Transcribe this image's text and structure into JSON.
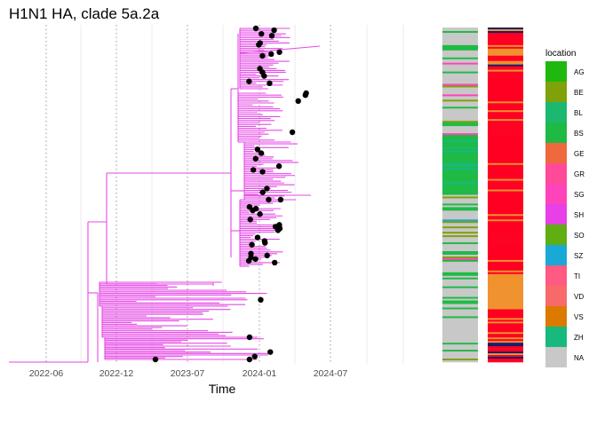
{
  "title": "H1N1 HA, clade 5a.2a",
  "chart_data": {
    "type": "phylogenetic-tree",
    "title": "H1N1 HA, clade 5a.2a",
    "xlabel": "Time",
    "x_ticks": [
      "2022-06",
      "2022-12",
      "2023-07",
      "2024-01",
      "2024-07"
    ],
    "branch_color": "#e64ae6",
    "tip_marker_color": "#000000",
    "grid": "vertical",
    "legend_position": "right",
    "legend": {
      "title": "location",
      "entries": [
        {
          "label": "AG",
          "color": "#1fb80e"
        },
        {
          "label": "BE",
          "color": "#7fa10a"
        },
        {
          "label": "BL",
          "color": "#1db870"
        },
        {
          "label": "BS",
          "color": "#1eba45"
        },
        {
          "label": "GE",
          "color": "#ee6a3c"
        },
        {
          "label": "GR",
          "color": "#ff4a9a"
        },
        {
          "label": "SG",
          "color": "#ff44bb"
        },
        {
          "label": "SH",
          "color": "#e640e6"
        },
        {
          "label": "SO",
          "color": "#5fae12"
        },
        {
          "label": "SZ",
          "color": "#1aa9d6"
        },
        {
          "label": "TI",
          "color": "#ff5a84"
        },
        {
          "label": "VD",
          "color": "#f86a6a"
        },
        {
          "label": "VS",
          "color": "#dc7a00"
        },
        {
          "label": "ZH",
          "color": "#17b97e"
        },
        {
          "label": "NA",
          "color": "#c8c8c8"
        }
      ]
    },
    "heatmap_colors": [
      "#ff0022",
      "#f0922e",
      "#141e6e",
      "#ffffff"
    ]
  }
}
